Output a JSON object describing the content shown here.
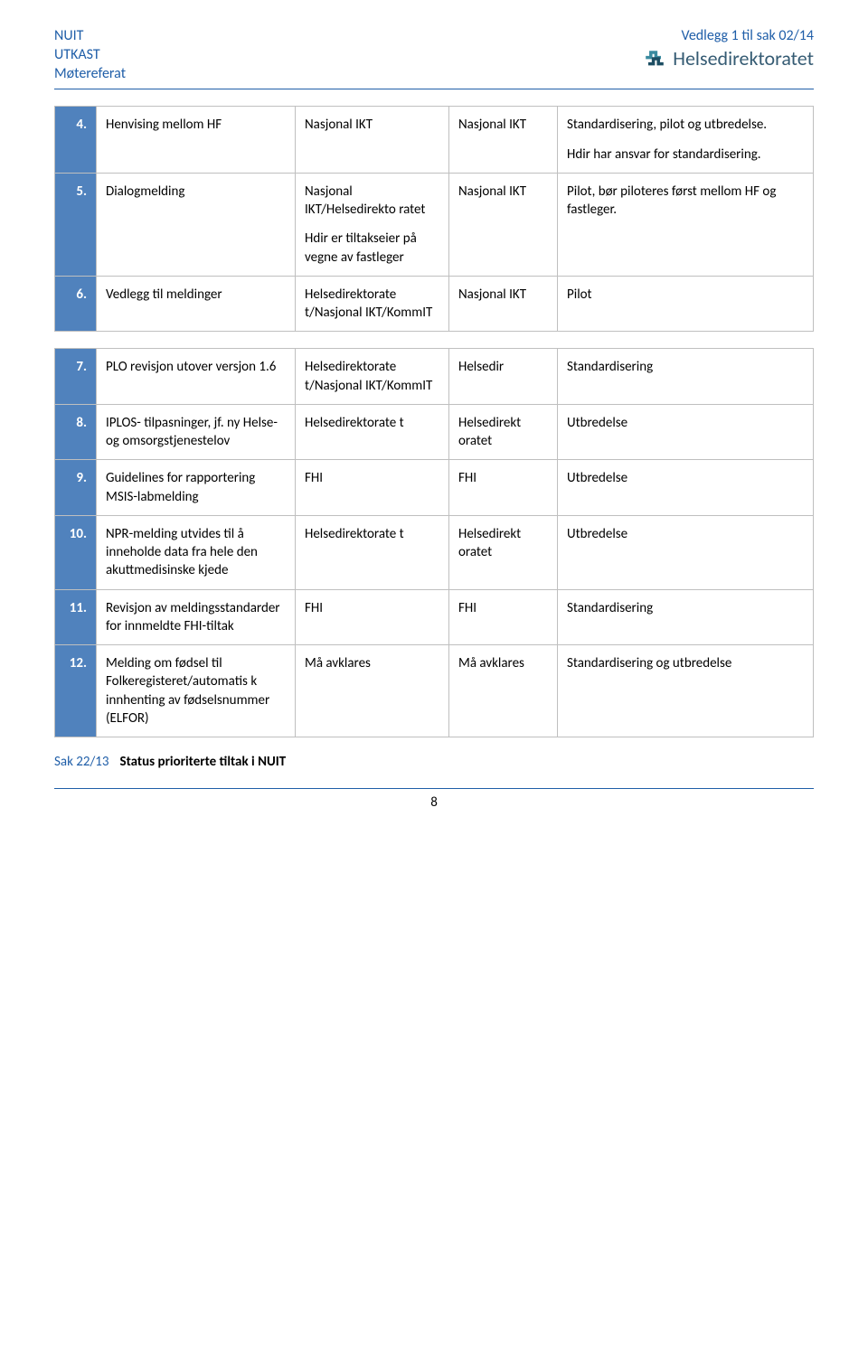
{
  "header": {
    "left_lines": [
      "NUIT",
      "UTKAST",
      "Møtereferat"
    ],
    "vedlegg": "Vedlegg 1 til sak 02/14",
    "brand": "Helsedirektoratet"
  },
  "tables": {
    "t1": {
      "rows": [
        {
          "num": "4.",
          "desc": "Henvising mellom HF",
          "c1": "Nasjonal IKT",
          "c1b": "",
          "c2": "Nasjonal IKT",
          "c3a": "Standardisering, pilot og utbredelse.",
          "c3b": "Hdir har ansvar for standardisering."
        },
        {
          "num": "5.",
          "desc": "Dialogmelding",
          "c1": "Nasjonal IKT/Helsedirekto ratet",
          "c1b": "Hdir er tiltakseier på vegne av fastleger",
          "c2": "Nasjonal IKT",
          "c3a": "Pilot, bør piloteres først mellom HF og fastleger.",
          "c3b": ""
        },
        {
          "num": "6.",
          "desc": "Vedlegg til meldinger",
          "c1": "Helsedirektorate t/Nasjonal IKT/KommIT",
          "c1b": "",
          "c2": "Nasjonal IKT",
          "c3a": "Pilot",
          "c3b": ""
        }
      ]
    },
    "t2": {
      "rows": [
        {
          "num": "7.",
          "desc": "PLO revisjon utover versjon 1.6",
          "c1": "Helsedirektorate t/Nasjonal IKT/KommIT",
          "c2": "Helsedir",
          "c3": "Standardisering"
        },
        {
          "num": "8.",
          "desc": "IPLOS- tilpasninger, jf. ny Helse- og omsorgstjenestelov",
          "c1": "Helsedirektorate t",
          "c2": "Helsedirekt oratet",
          "c3": "Utbredelse"
        },
        {
          "num": "9.",
          "desc": "Guidelines for rapportering MSIS-labmelding",
          "c1": "FHI",
          "c2": "FHI",
          "c3": "Utbredelse"
        },
        {
          "num": "10.",
          "desc": "NPR-melding utvides til å inneholde data fra hele den akuttmedisinske kjede",
          "c1": "Helsedirektorate t",
          "c2": "Helsedirekt oratet",
          "c3": "Utbredelse"
        },
        {
          "num": "11.",
          "desc": "Revisjon av meldingsstandarder for innmeldte FHI-tiltak",
          "c1": "FHI",
          "c2": "FHI",
          "c3": "Standardisering"
        },
        {
          "num": "12.",
          "desc": "Melding om fødsel til Folkeregisteret/automatis k innhenting av fødselsnummer (ELFOR)",
          "c1": "Må avklares",
          "c2": "Må avklares",
          "c3": "Standardisering og utbredelse"
        }
      ]
    }
  },
  "footer": {
    "sak": "Sak 22/13",
    "title": "Status prioriterte tiltak i NUIT",
    "page": "8"
  }
}
